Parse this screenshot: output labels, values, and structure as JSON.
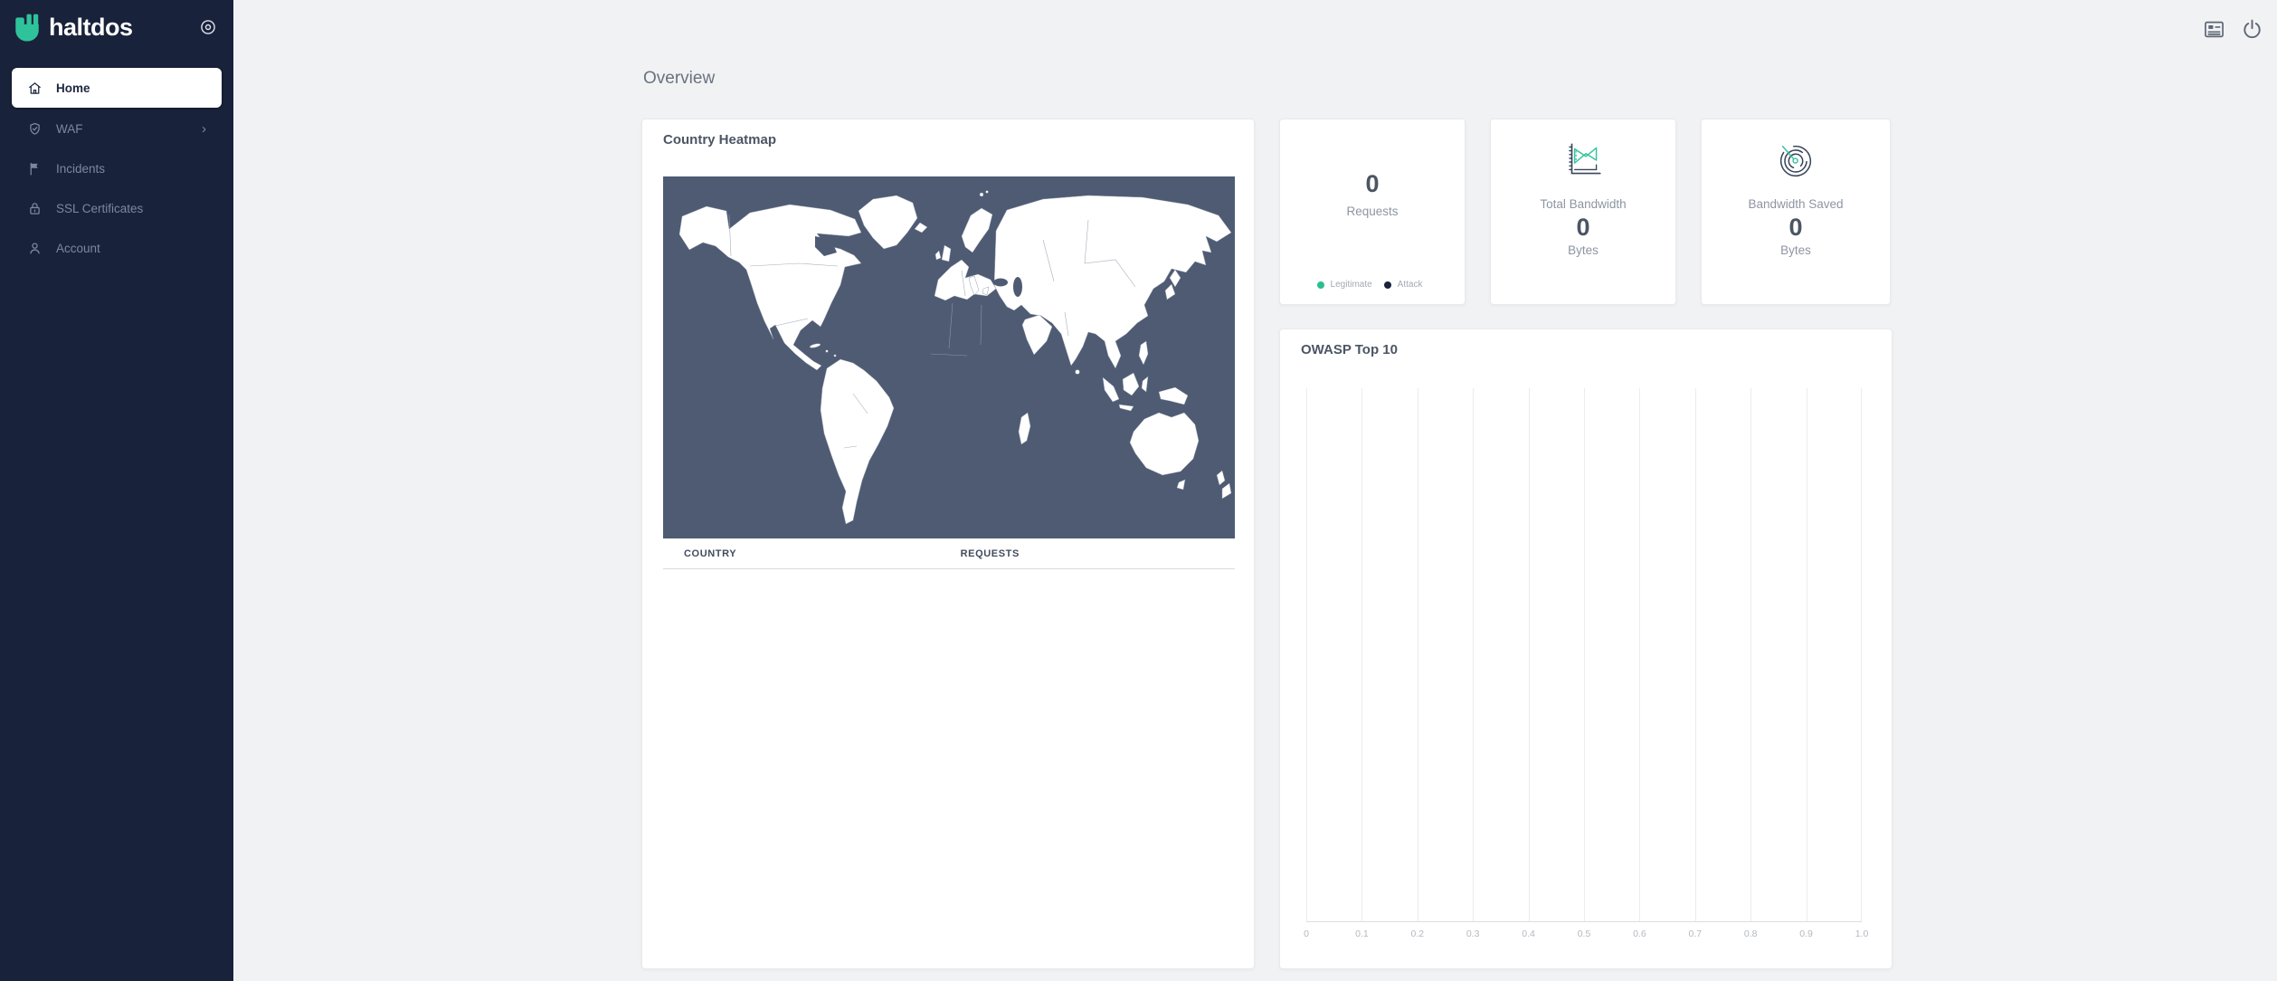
{
  "brand": {
    "name": "haltdos"
  },
  "sidebar": {
    "items": [
      {
        "label": "Home",
        "icon": "home-icon",
        "active": true
      },
      {
        "label": "WAF",
        "icon": "shield-check-icon",
        "has_submenu": true,
        "chevron": "›"
      },
      {
        "label": "Incidents",
        "icon": "flag-icon"
      },
      {
        "label": "SSL Certificates",
        "icon": "lock-icon"
      },
      {
        "label": "Account",
        "icon": "user-icon"
      }
    ]
  },
  "topbar": {
    "icons": [
      "news-feed-icon",
      "power-icon"
    ]
  },
  "page": {
    "title": "Overview"
  },
  "heatmap": {
    "title": "Country Heatmap",
    "table": {
      "columns": [
        "COUNTRY",
        "REQUESTS"
      ],
      "rows": []
    }
  },
  "stats": {
    "requests": {
      "value": "0",
      "label": "Requests",
      "legend": [
        {
          "label": "Legitimate",
          "color": "#2bbe90"
        },
        {
          "label": "Attack",
          "color": "#192339"
        }
      ]
    },
    "total_bandwidth": {
      "title": "Total Bandwidth",
      "value": "0",
      "unit": "Bytes",
      "icon": "line-chart-icon"
    },
    "bandwidth_saved": {
      "title": "Bandwidth Saved",
      "value": "0",
      "unit": "Bytes",
      "icon": "radar-icon"
    }
  },
  "chart_data": {
    "type": "bar",
    "title": "OWASP Top 10",
    "orientation": "horizontal",
    "categories": [],
    "values": [],
    "x_axis": {
      "ticks": [
        "0",
        "0.1",
        "0.2",
        "0.3",
        "0.4",
        "0.5",
        "0.6",
        "0.7",
        "0.8",
        "0.9",
        "1.0"
      ],
      "range": [
        0,
        1
      ]
    },
    "grid": "vertical-only",
    "legend_position": "none"
  },
  "colors": {
    "sidebar_bg": "#18223a",
    "page_bg": "#f1f2f4",
    "map_bg": "#4e5b73",
    "accent_teal": "#2bbe90",
    "navy": "#192339",
    "card_title": "#4c5565"
  }
}
